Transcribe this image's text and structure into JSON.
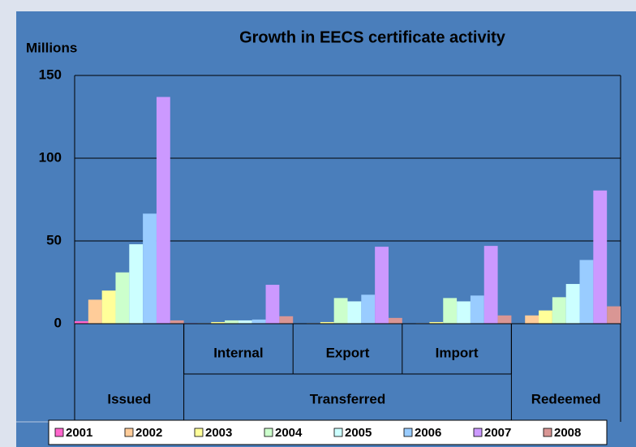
{
  "chart_data": {
    "type": "bar",
    "title": "Growth in EECS certificate activity",
    "y_label": "Millions",
    "categories": [
      null,
      "Internal",
      "Export",
      "Import",
      null
    ],
    "category_groups": [
      {
        "name": "Issued",
        "size": 1
      },
      {
        "name": "Transferred",
        "size": 3
      },
      {
        "name": "Redeemed",
        "size": 1
      }
    ],
    "ylim": [
      0,
      150
    ],
    "yticks": [
      0,
      50,
      100,
      150
    ],
    "grid": true,
    "legend": "bottom",
    "series": [
      {
        "name": "2001",
        "color": "#ff66cc",
        "values": [
          1.5,
          0.3,
          0,
          0,
          0
        ]
      },
      {
        "name": "2002",
        "color": "#ffcc99",
        "values": [
          14.5,
          0.3,
          0.3,
          0.3,
          5
        ]
      },
      {
        "name": "2003",
        "color": "#ffff99",
        "values": [
          20,
          1,
          1,
          1,
          8
        ]
      },
      {
        "name": "2004",
        "color": "#ccffcc",
        "values": [
          31,
          2,
          15.5,
          15.5,
          16
        ]
      },
      {
        "name": "2005",
        "color": "#ccffff",
        "values": [
          48,
          2,
          13.5,
          13.5,
          24
        ]
      },
      {
        "name": "2006",
        "color": "#99ccff",
        "values": [
          66.5,
          2.5,
          17.5,
          17,
          38.5
        ]
      },
      {
        "name": "2007",
        "color": "#cc99ff",
        "values": [
          137,
          23.5,
          46.5,
          47,
          80.5
        ]
      },
      {
        "name": "2008",
        "color": "#d99694",
        "values": [
          2,
          4.5,
          3.5,
          5,
          10.5
        ]
      }
    ]
  }
}
